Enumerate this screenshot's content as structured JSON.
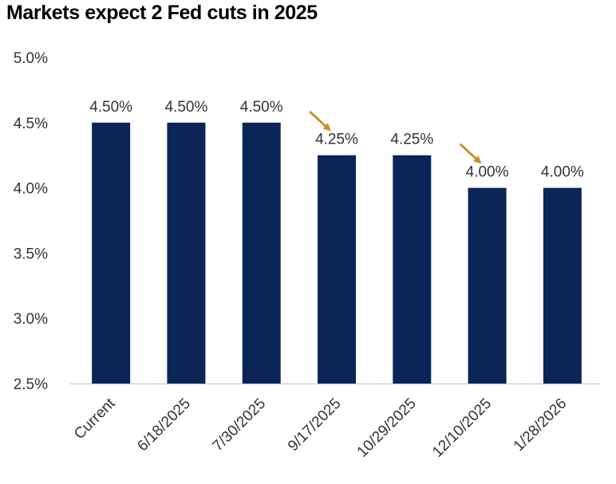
{
  "chart_data": {
    "type": "bar",
    "title": "Markets expect 2 Fed cuts in 2025",
    "categories": [
      "Current",
      "6/18/2025",
      "7/30/2025",
      "9/17/2025",
      "10/29/2025",
      "12/10/2025",
      "1/28/2026"
    ],
    "values": [
      4.5,
      4.5,
      4.5,
      4.25,
      4.25,
      4.0,
      4.0
    ],
    "data_labels": [
      "4.50%",
      "4.50%",
      "4.50%",
      "4.25%",
      "4.25%",
      "4.00%",
      "4.00%"
    ],
    "ylim": [
      2.5,
      5.0
    ],
    "yticks": [
      2.5,
      3.0,
      3.5,
      4.0,
      4.5,
      5.0
    ],
    "ytick_labels": [
      "2.5%",
      "3.0%",
      "3.5%",
      "4.0%",
      "4.5%",
      "5.0%"
    ],
    "xlabel": "",
    "ylabel": "",
    "grid": false,
    "legend": "none",
    "bar_color": "#0b2559",
    "cut_arrow_color": "#c8922a",
    "cut_arrows_before": [
      "9/17/2025",
      "12/10/2025"
    ]
  }
}
